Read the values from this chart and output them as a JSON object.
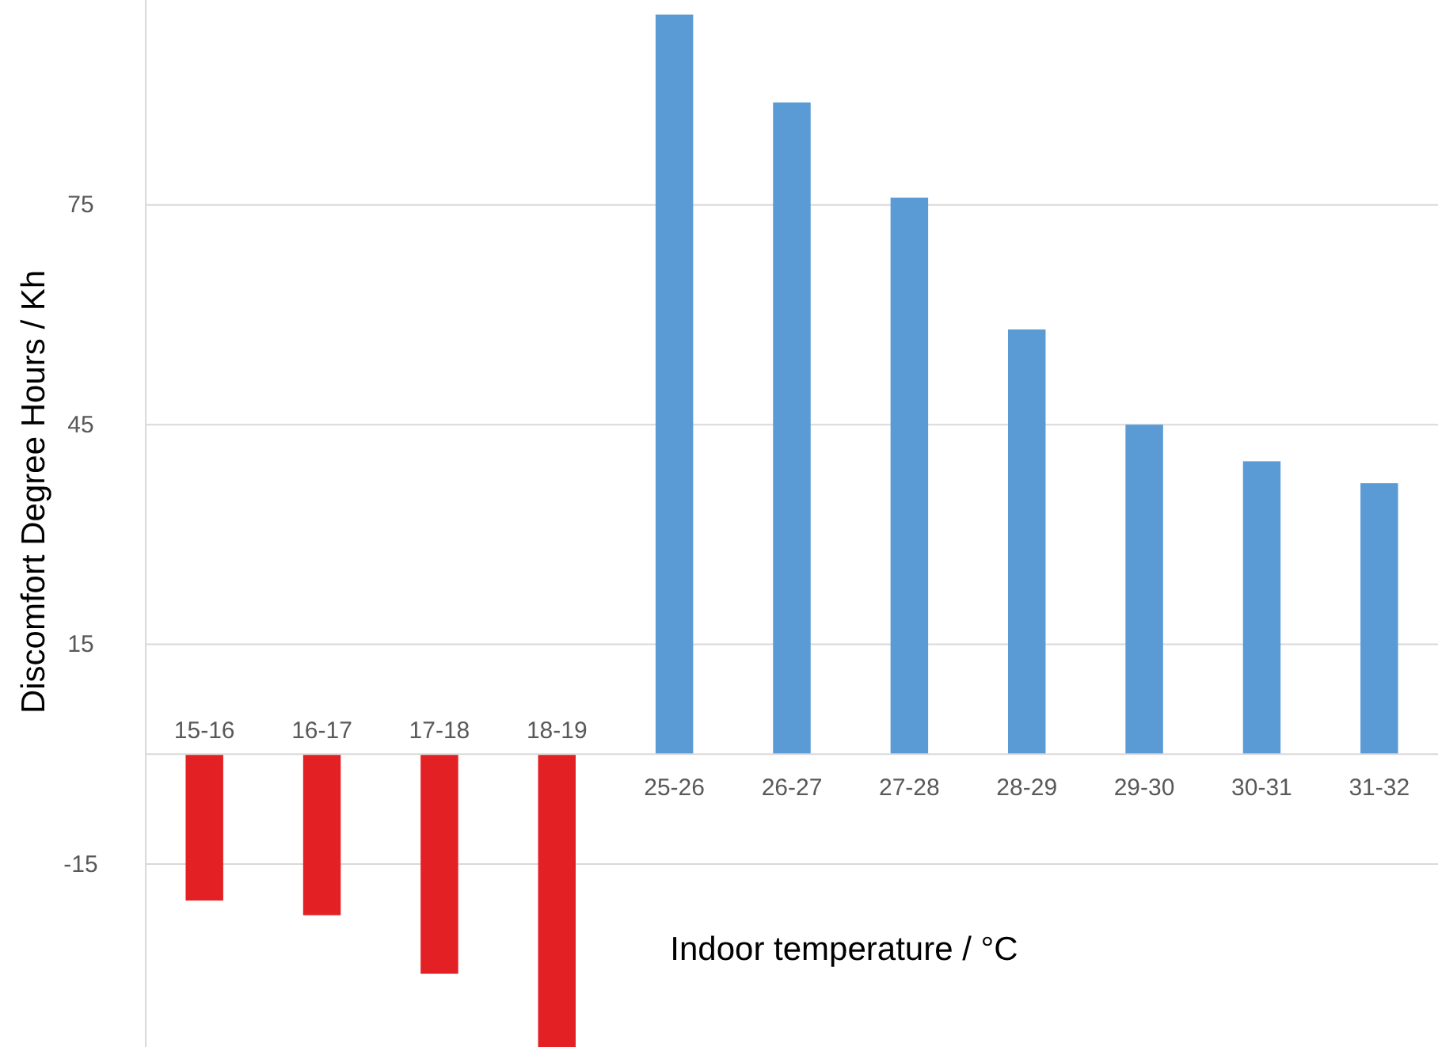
{
  "chart_data": {
    "type": "bar",
    "xlabel": "Indoor temperature / °C",
    "ylabel": "Discomfort Degree Hours / Kh",
    "categories": [
      "15-16",
      "16-17",
      "17-18",
      "18-19",
      "25-26",
      "26-27",
      "27-28",
      "28-29",
      "29-30",
      "30-31",
      "31-32"
    ],
    "values": [
      -20,
      -22,
      -30,
      -40,
      101,
      89,
      76,
      58,
      45,
      40,
      37
    ],
    "colors": [
      "#e32124",
      "#e32124",
      "#e32124",
      "#e32124",
      "#5b9bd5",
      "#5b9bd5",
      "#5b9bd5",
      "#5b9bd5",
      "#5b9bd5",
      "#5b9bd5",
      "#5b9bd5"
    ],
    "ylim": [
      -40,
      103
    ],
    "yticks": [
      -15,
      15,
      45,
      75
    ],
    "grid": "y"
  }
}
